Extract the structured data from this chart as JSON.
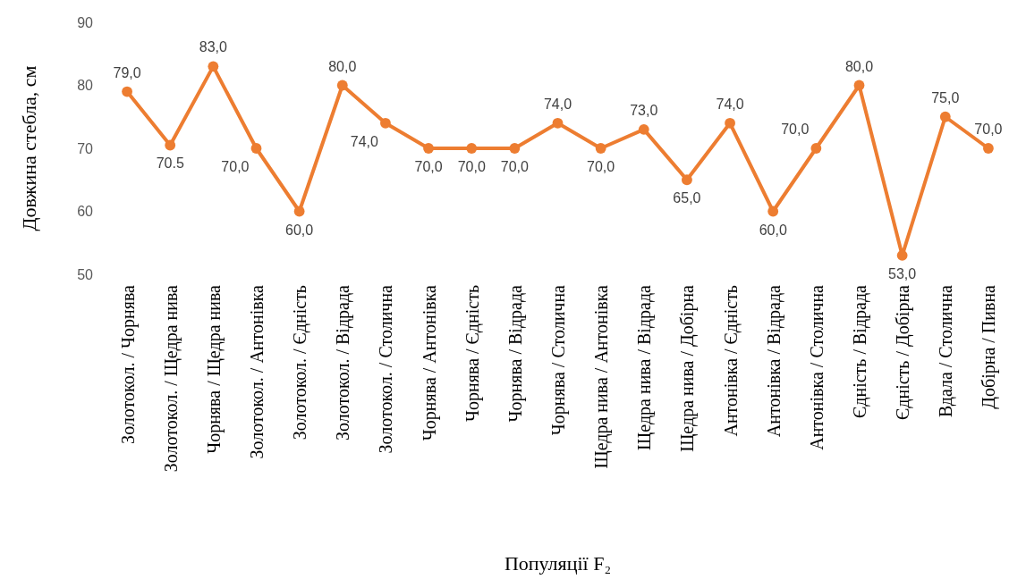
{
  "chart_data": {
    "type": "line",
    "xlabel": "Популяції F₂",
    "ylabel": "Довжина стебла, см",
    "categories": [
      "Золотокол. / Чорнява",
      "Золотокол. / Щедра нива",
      "Чорнява / Щедра нива",
      "Золотокол. / Антонівка",
      "Золотокол. / Єдність",
      "Золотокол. / Відрада",
      "Золотокол. / Столична",
      "Чорнява / Антонівка",
      "Чорнява / Єдність",
      "Чорнява / Відрада",
      "Чорнява / Столична",
      "Щедра нива / Антонівка",
      "Щедра нива / Відрада",
      "Щедра нива / Добірна",
      "Антонівка / Єдність",
      "Антонівка / Відрада",
      "Антонівка / Столична",
      "Єдність / Відрада",
      "Єдність / Добірна",
      "Вдала / Столична",
      "Добірна / Пивна"
    ],
    "series": [
      {
        "color": "#ed7d31",
        "values": [
          79,
          70.5,
          83,
          70,
          60,
          80,
          74,
          70,
          70,
          70,
          74,
          70,
          73,
          65,
          74,
          60,
          70,
          80,
          53,
          75,
          70
        ],
        "value_labels": [
          "79,0",
          "70.5",
          "83,0",
          "70,0",
          "60,0",
          "80,0",
          "74,0",
          "70,0",
          "70,0",
          "70,0",
          "74,0",
          "70,0",
          "73,0",
          "65,0",
          "74,0",
          "60,0",
          "70,0",
          "80,0",
          "53,0",
          "75,0",
          "70,0"
        ]
      }
    ],
    "ylim": [
      50,
      90
    ],
    "yticks": [
      50,
      60,
      70,
      80,
      90
    ],
    "grid": false,
    "marker": "circle",
    "line_style": "solid"
  }
}
